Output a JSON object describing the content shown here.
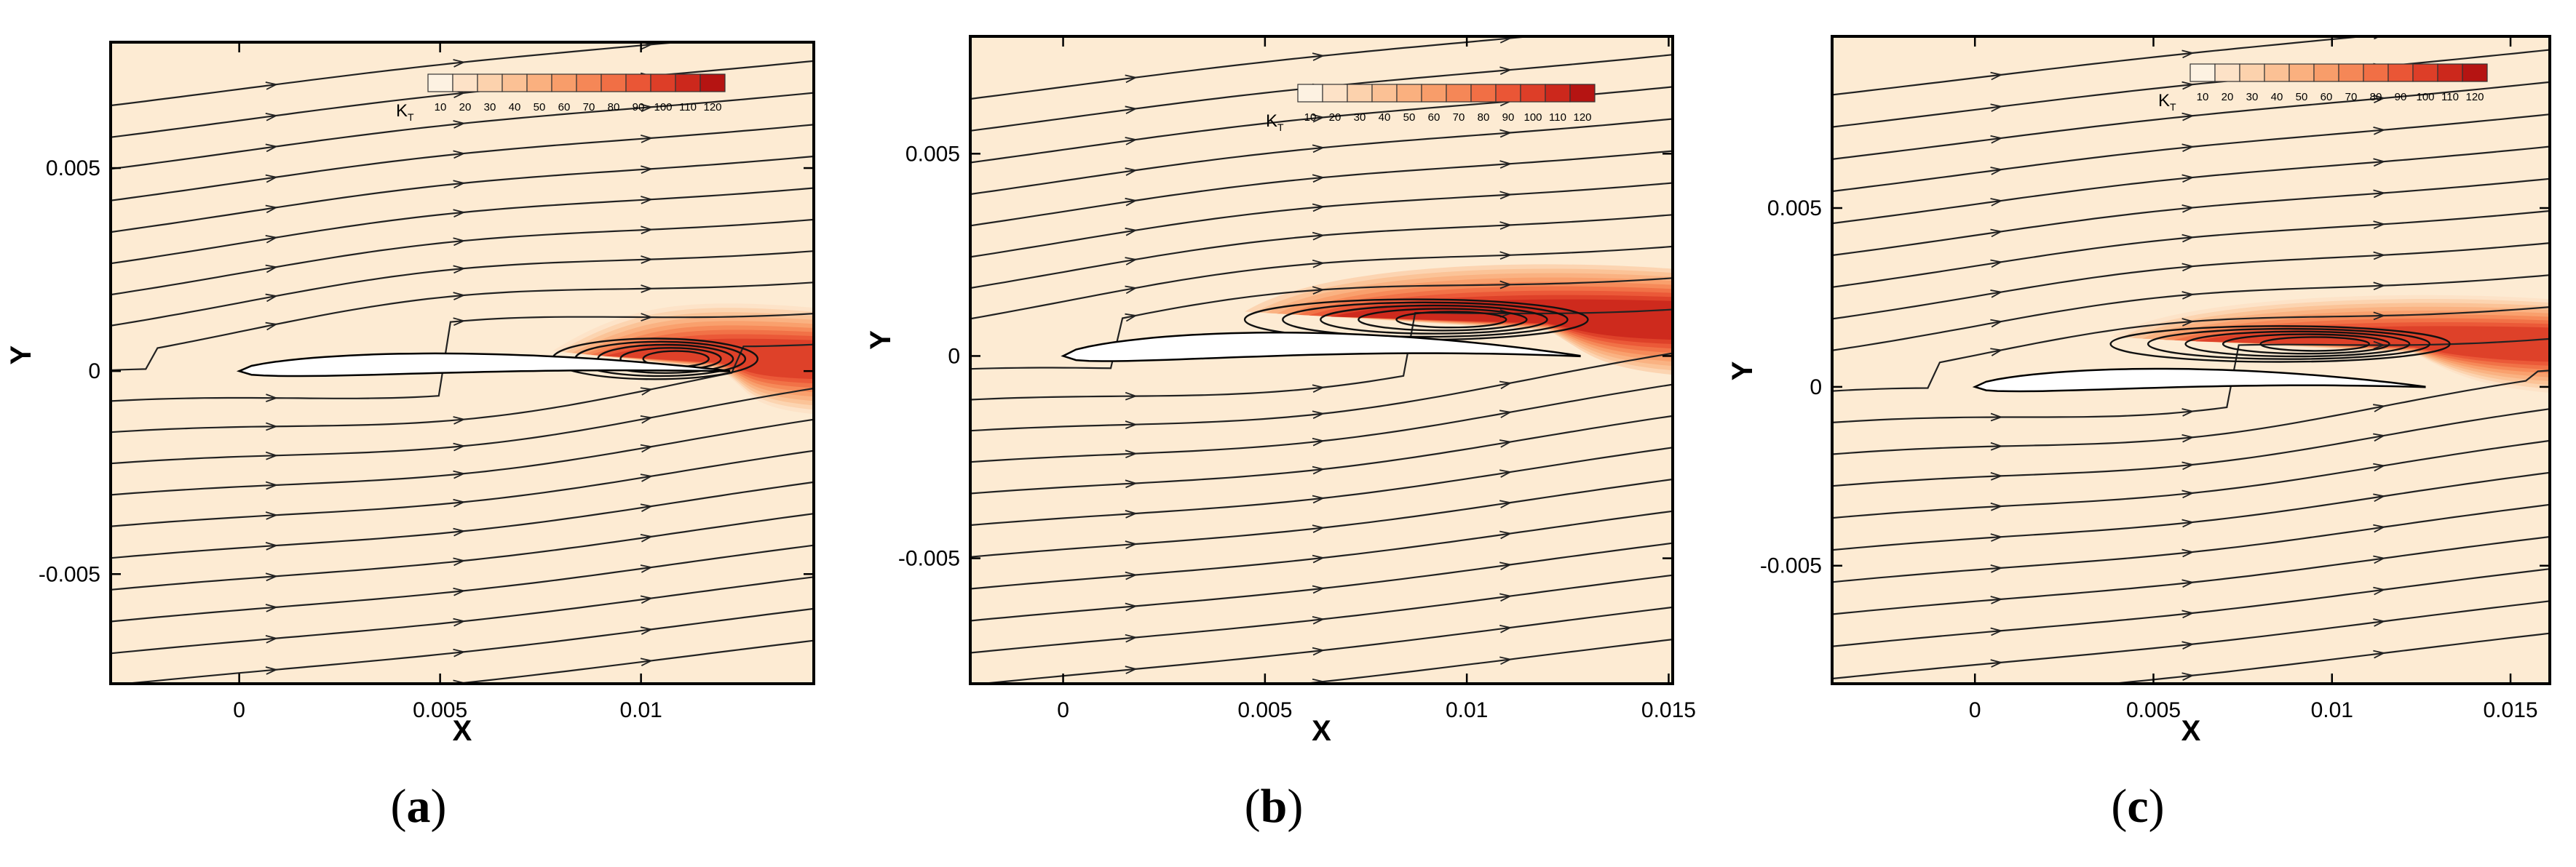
{
  "chart_data": [
    {
      "type": "contour",
      "panel_label": "a",
      "caption_open": "(",
      "caption_close": ")",
      "xlabel": "X",
      "ylabel": "Y",
      "xlim": [
        -0.0032,
        0.0143
      ],
      "ylim": [
        -0.0077,
        0.0081
      ],
      "x_ticks": [
        0,
        0.005,
        0.01
      ],
      "x_tick_labels": [
        "0",
        "0.005",
        "0.01"
      ],
      "y_ticks": [
        -0.005,
        0,
        0.005
      ],
      "y_tick_labels": [
        "-0.005",
        "0",
        "0.005"
      ],
      "colorbar": {
        "title": "K",
        "title_sub": "T",
        "levels": [
          "10",
          "20",
          "30",
          "40",
          "50",
          "60",
          "70",
          "80",
          "90",
          "100",
          "110",
          "120"
        ]
      },
      "airfoil": {
        "le": 0.0,
        "te": 0.0122,
        "thickness": 0.0005,
        "camber": 0.0002
      },
      "separation_bubble": {
        "x_start": 0.0078,
        "x_end": 0.0129,
        "y_center": 0.0003
      },
      "wake_contour_end_x": 0.0143
    },
    {
      "type": "contour",
      "panel_label": "b",
      "caption_open": "(",
      "caption_close": ")",
      "xlabel": "X",
      "ylabel": "Y",
      "xlim": [
        -0.0023,
        0.0151
      ],
      "ylim": [
        -0.0081,
        0.0079
      ],
      "x_ticks": [
        0,
        0.005,
        0.01,
        0.015
      ],
      "x_tick_labels": [
        "0",
        "0.005",
        "0.01",
        "0.015"
      ],
      "y_ticks": [
        -0.005,
        0,
        0.005
      ],
      "y_tick_labels": [
        "-0.005",
        "0",
        "0.005"
      ],
      "colorbar": {
        "title": "K",
        "title_sub": "T",
        "levels": [
          "10",
          "20",
          "30",
          "40",
          "50",
          "60",
          "70",
          "80",
          "90",
          "100",
          "110",
          "120"
        ]
      },
      "airfoil": {
        "le": 0.0,
        "te": 0.0128,
        "thickness": 0.0006,
        "camber": 0.0003
      },
      "separation_bubble": {
        "x_start": 0.0045,
        "x_end": 0.013,
        "y_center": 0.0009
      },
      "wake_contour_end_x": 0.0151
    },
    {
      "type": "contour",
      "panel_label": "c",
      "caption_open": "(",
      "caption_close": ")",
      "xlabel": "X",
      "ylabel": "Y",
      "xlim": [
        -0.004,
        0.0161
      ],
      "ylim": [
        -0.0083,
        0.0098
      ],
      "x_ticks": [
        0,
        0.005,
        0.01,
        0.015
      ],
      "x_tick_labels": [
        "0",
        "0.005",
        "0.01",
        "0.015"
      ],
      "y_ticks": [
        -0.005,
        0,
        0.005
      ],
      "y_tick_labels": [
        "-0.005",
        "0",
        "0.005"
      ],
      "colorbar": {
        "title": "K",
        "title_sub": "T",
        "levels": [
          "10",
          "20",
          "30",
          "40",
          "50",
          "60",
          "70",
          "80",
          "90",
          "100",
          "110",
          "120"
        ]
      },
      "airfoil": {
        "le": 0.0,
        "te": 0.0126,
        "thickness": 0.00055,
        "camber": 0.00025
      },
      "separation_bubble": {
        "x_start": 0.0038,
        "x_end": 0.0133,
        "y_center": 0.0012
      },
      "wake_contour_end_x": 0.0161
    }
  ],
  "colors": {
    "background": "#fdebd3",
    "frame": "#000000",
    "streamline": "#222222",
    "colorbar": [
      "#fdf2e2",
      "#fde2c7",
      "#fcd2ad",
      "#fbc195",
      "#fab07f",
      "#f89d6a",
      "#f58757",
      "#f16f45",
      "#ea5636",
      "#dd3e28",
      "#cc281c",
      "#b51412"
    ]
  }
}
